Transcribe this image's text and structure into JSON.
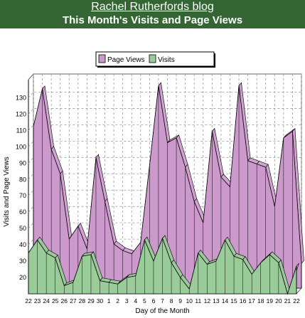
{
  "header": {
    "blog_title": "Rachel Rutherfords blog",
    "chart_title": "This Month's Visits and Page Views"
  },
  "colors": {
    "header_bg": "#336633",
    "page_views": "#cc99cc",
    "visits": "#99cc99",
    "line": "#000000",
    "grid": "#999999"
  },
  "chart_data": {
    "type": "area",
    "title": "This Month's Visits and Page Views",
    "xlabel": "Day of the Month",
    "ylabel": "Visits and Page Views",
    "ylim": [
      10,
      135
    ],
    "yticks": [
      20,
      30,
      40,
      50,
      60,
      70,
      80,
      90,
      100,
      110,
      120,
      130
    ],
    "grid": true,
    "legend": "top",
    "stacked": false,
    "three_d": true,
    "categories": [
      "22",
      "23",
      "24",
      "25",
      "26",
      "27",
      "28",
      "29",
      "30",
      "1",
      "2",
      "3",
      "4",
      "5",
      "6",
      "7",
      "8",
      "9",
      "10",
      "11",
      "12",
      "13",
      "14",
      "15",
      "16",
      "17",
      "18",
      "19",
      "20",
      "21",
      "22"
    ],
    "series": [
      {
        "name": "Page Views",
        "values": [
          109,
          132,
          95,
          80,
          40,
          48,
          34,
          90,
          63,
          37,
          33,
          31,
          38,
          85,
          134,
          99,
          102,
          84,
          63,
          50,
          106,
          78,
          72,
          134,
          88,
          86,
          84,
          60,
          102,
          106,
          25
        ]
      },
      {
        "name": "Visits",
        "values": [
          35,
          43,
          35,
          32,
          15,
          17,
          33,
          34,
          18,
          17,
          16,
          20,
          21,
          43,
          30,
          44,
          29,
          20,
          13,
          35,
          28,
          30,
          43,
          33,
          31,
          22,
          29,
          34,
          29,
          10,
          27
        ]
      }
    ]
  }
}
